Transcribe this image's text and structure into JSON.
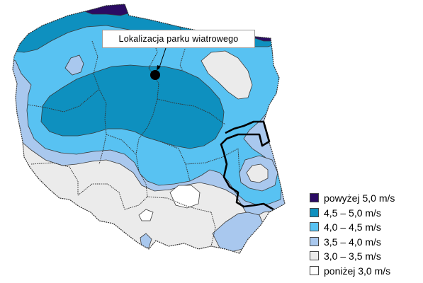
{
  "callout": {
    "label": "Lokalizacja parku wiatrowego"
  },
  "legend": {
    "items": [
      {
        "label": "powyżej 5,0 m/s",
        "color": "#2b0b63"
      },
      {
        "label": "4,5 – 5,0 m/s",
        "color": "#0e90bf"
      },
      {
        "label": "4,0 – 4,5 m/s",
        "color": "#58c2f2"
      },
      {
        "label": "3,5 – 4,0 m/s",
        "color": "#a9c8ee"
      },
      {
        "label": "3,0 – 3,5 m/s",
        "color": "#ebebeb"
      },
      {
        "label": "poniżej 3,0 m/s",
        "color": "#ffffff"
      }
    ]
  },
  "colors": {
    "boundary": "#333333",
    "eastern_border": "#000000",
    "marker": "#000000"
  }
}
